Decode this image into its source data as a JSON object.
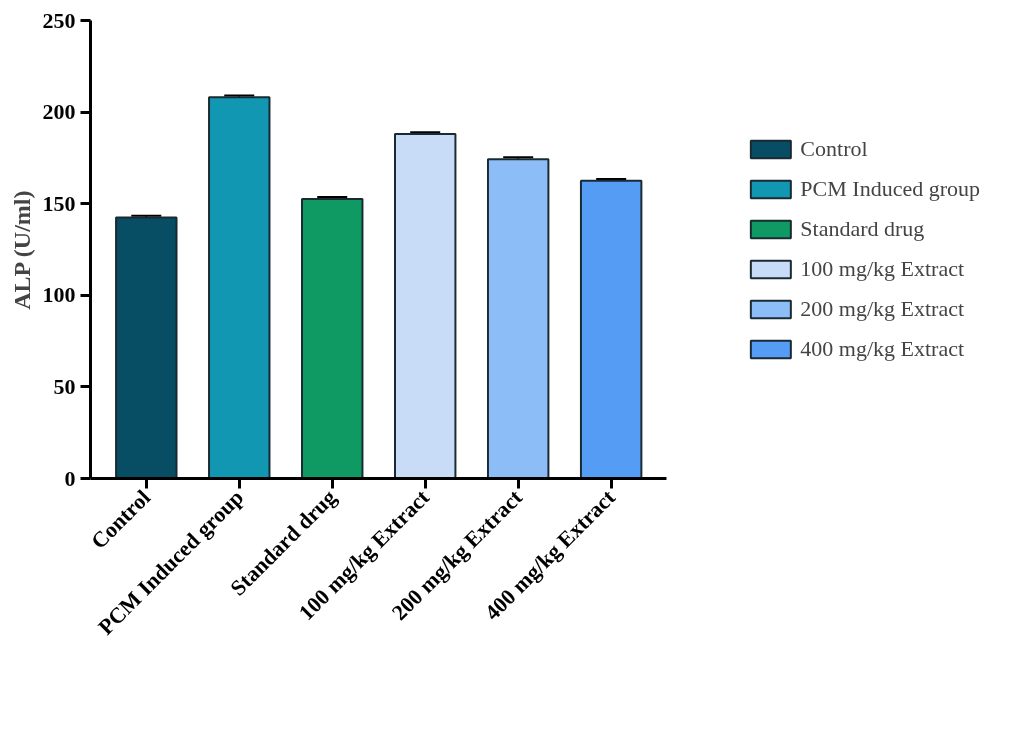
{
  "chart_data": {
    "type": "bar",
    "ylabel": "ALP (U/ml)",
    "categories": [
      "Control",
      "PCM Induced group",
      "Standard drug",
      "100 mg/kg Extract",
      "200 mg/kg Extract",
      "400 mg/kg Extract"
    ],
    "series": [
      {
        "name": "Control",
        "color": "#074d63",
        "values": [
          142.4,
          null,
          null,
          null,
          null,
          null
        ],
        "errors": [
          1,
          null,
          null,
          null,
          null,
          null
        ]
      },
      {
        "name": "PCM Induced group",
        "color": "#1297b3",
        "values": [
          null,
          208.1,
          null,
          null,
          null,
          null
        ],
        "errors": [
          null,
          1,
          null,
          null,
          null,
          null
        ]
      },
      {
        "name": "Standard drug",
        "color": "#0e9a62",
        "values": [
          null,
          null,
          152.6,
          null,
          null,
          null
        ],
        "errors": [
          null,
          null,
          1,
          null,
          null,
          null
        ]
      },
      {
        "name": "100 mg/kg Extract",
        "color": "#c8dcf7",
        "values": [
          null,
          null,
          null,
          188.0,
          null,
          null
        ],
        "errors": [
          null,
          null,
          null,
          1,
          null,
          null
        ]
      },
      {
        "name": "200 mg/kg Extract",
        "color": "#8cbdf7",
        "values": [
          null,
          null,
          null,
          null,
          174.3,
          null
        ],
        "errors": [
          null,
          null,
          null,
          null,
          1,
          null
        ]
      },
      {
        "name": "400 mg/kg Extract",
        "color": "#559cf5",
        "values": [
          null,
          null,
          null,
          null,
          null,
          162.5
        ],
        "errors": [
          null,
          null,
          null,
          null,
          null,
          1
        ]
      }
    ],
    "ylim": [
      0,
      250
    ],
    "yticks": [
      0,
      50,
      100,
      150,
      200,
      250
    ],
    "grid": false,
    "legend": "right"
  }
}
